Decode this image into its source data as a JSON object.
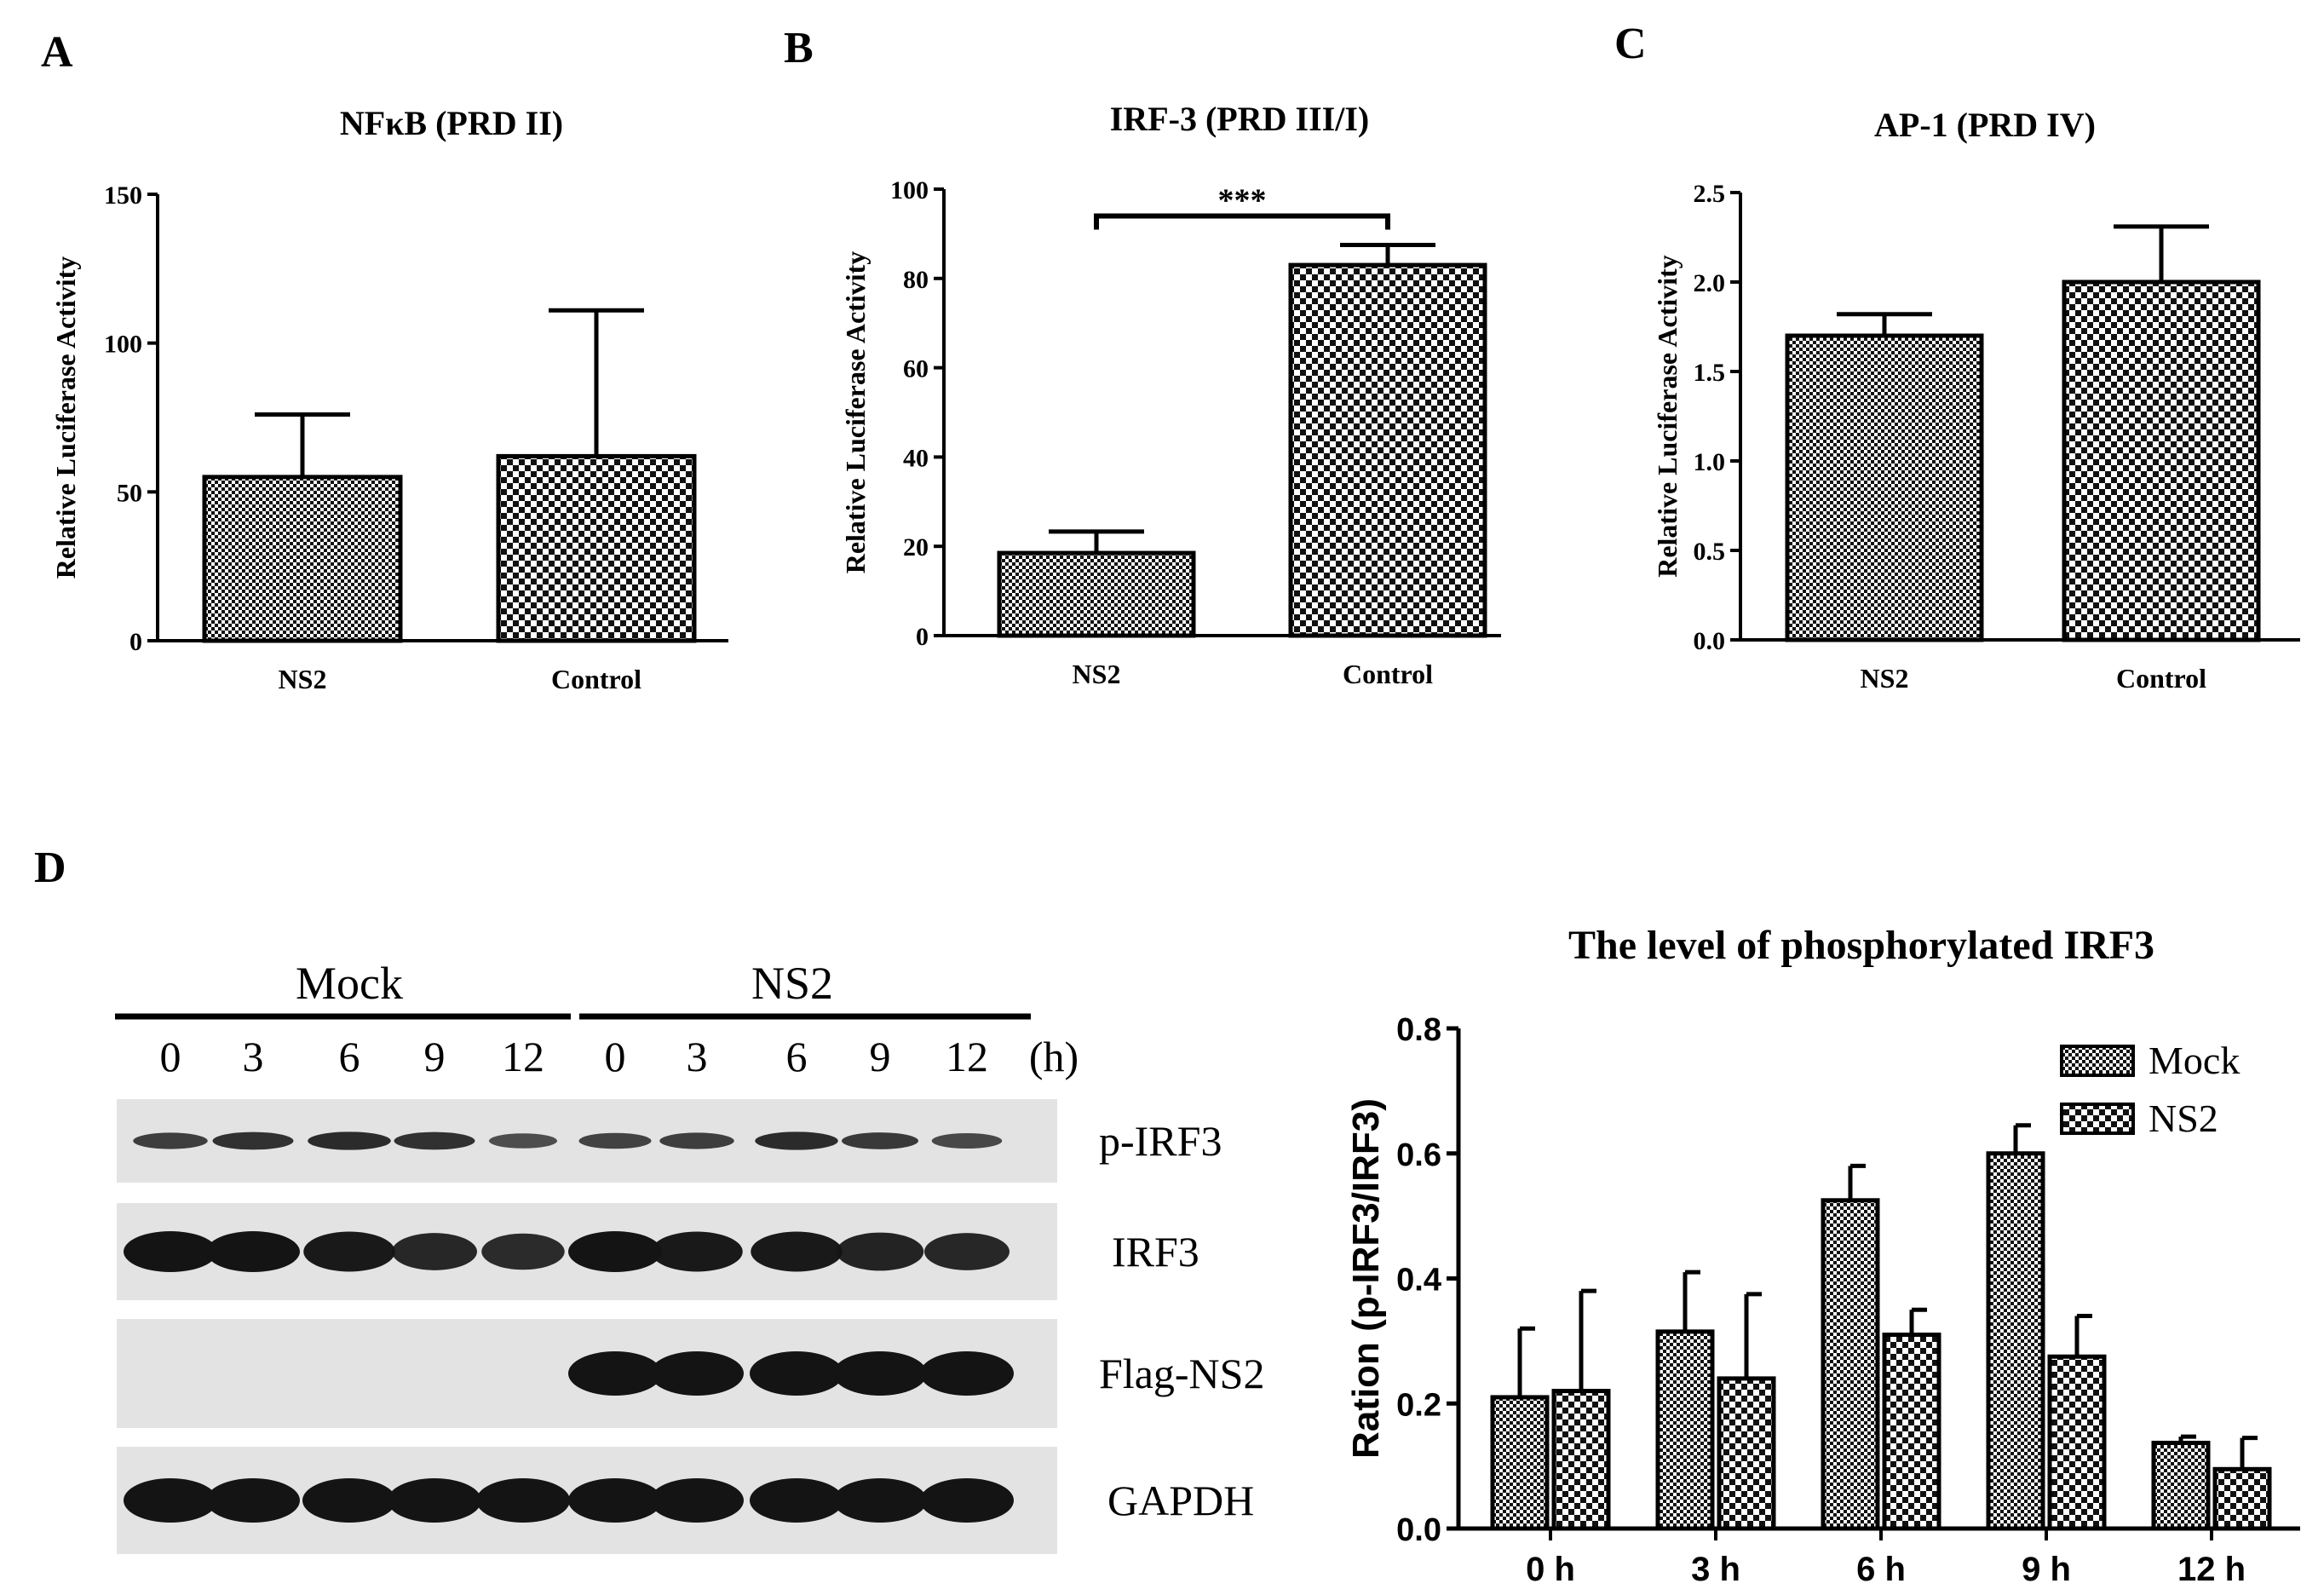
{
  "figure": {
    "panel_labels": [
      "A",
      "B",
      "C",
      "D"
    ]
  },
  "colors": {
    "ink": "#000000",
    "bar_fill_dark": "#111111",
    "bar_fill_light": "#ffffff",
    "blot_background": "#e3e3e3",
    "band": "#141414"
  },
  "chart_data": [
    {
      "id": "A",
      "type": "bar",
      "title": "NFκB (PRD II)",
      "xlabel": "",
      "ylabel": "Relative Luciferase Activity",
      "categories": [
        "NS2",
        "Control"
      ],
      "values": [
        55,
        62
      ],
      "errors": [
        21,
        49
      ],
      "ylim": [
        0,
        150
      ],
      "yticks": [
        0,
        50,
        100,
        150
      ],
      "ytick_labels": [
        "0",
        "50",
        "100",
        "150"
      ],
      "patterns": [
        "fine",
        "coarse"
      ],
      "significance": null
    },
    {
      "id": "B",
      "type": "bar",
      "title": "IRF-3 (PRD III/I)",
      "xlabel": "",
      "ylabel": "Relative Luciferase Activity",
      "categories": [
        "NS2",
        "Control"
      ],
      "values": [
        18.5,
        83
      ],
      "errors": [
        4.8,
        4.5
      ],
      "ylim": [
        0,
        100
      ],
      "yticks": [
        0,
        20,
        40,
        60,
        80,
        100
      ],
      "ytick_labels": [
        "0",
        "20",
        "40",
        "60",
        "80",
        "100"
      ],
      "patterns": [
        "fine",
        "coarse"
      ],
      "significance": {
        "label": "***",
        "from": 0,
        "to": 1,
        "y": 94
      }
    },
    {
      "id": "C",
      "type": "bar",
      "title": "AP-1 (PRD IV)",
      "xlabel": "",
      "ylabel": "Relative Luciferase Activity",
      "categories": [
        "NS2",
        "Control"
      ],
      "values": [
        1.7,
        2.0
      ],
      "errors": [
        0.12,
        0.31
      ],
      "ylim": [
        0,
        2.5
      ],
      "yticks": [
        0,
        0.5,
        1.0,
        1.5,
        2.0,
        2.5
      ],
      "ytick_labels": [
        "0.0",
        "0.5",
        "1.0",
        "1.5",
        "2.0",
        "2.5"
      ],
      "patterns": [
        "fine",
        "coarse"
      ],
      "significance": null
    },
    {
      "id": "D",
      "type": "bar",
      "title": "The level of phosphorylated IRF3",
      "xlabel": "",
      "ylabel": "Ration (p-IRF3/IRF3)",
      "categories": [
        "0 h",
        "3 h",
        "6 h",
        "9 h",
        "12 h"
      ],
      "series": [
        {
          "name": "Mock",
          "values": [
            0.21,
            0.315,
            0.525,
            0.6,
            0.137
          ],
          "errors": [
            0.11,
            0.095,
            0.055,
            0.045,
            0.01
          ],
          "pattern": "fine"
        },
        {
          "name": "NS2",
          "values": [
            0.22,
            0.24,
            0.31,
            0.275,
            0.095
          ],
          "errors": [
            0.16,
            0.135,
            0.04,
            0.065,
            0.05
          ],
          "pattern": "coarse"
        }
      ],
      "ylim": [
        0,
        0.8
      ],
      "yticks": [
        0,
        0.2,
        0.4,
        0.6,
        0.8
      ],
      "ytick_labels": [
        "0.0",
        "0.2",
        "0.4",
        "0.6",
        "0.8"
      ],
      "legend_position": "top-right"
    }
  ],
  "western_blot": {
    "groups": [
      "Mock",
      "NS2"
    ],
    "timepoints": [
      "0",
      "3",
      "6",
      "9",
      "12",
      "0",
      "3",
      "6",
      "9",
      "12"
    ],
    "time_unit": "(h)",
    "rows": [
      {
        "label": "p-IRF3",
        "intensity": [
          0.55,
          0.7,
          0.75,
          0.7,
          0.4,
          0.5,
          0.55,
          0.75,
          0.6,
          0.45
        ]
      },
      {
        "label": "IRF3",
        "intensity": [
          1.0,
          1.0,
          0.95,
          0.8,
          0.75,
          1.0,
          0.95,
          0.95,
          0.85,
          0.8
        ]
      },
      {
        "label": "Flag-NS2",
        "intensity": [
          0,
          0,
          0,
          0,
          0,
          1.0,
          1.0,
          1.0,
          1.0,
          1.0
        ]
      },
      {
        "label": "GAPDH",
        "intensity": [
          1.0,
          1.0,
          1.0,
          1.0,
          1.0,
          1.0,
          1.0,
          1.0,
          1.0,
          1.0
        ]
      }
    ]
  }
}
